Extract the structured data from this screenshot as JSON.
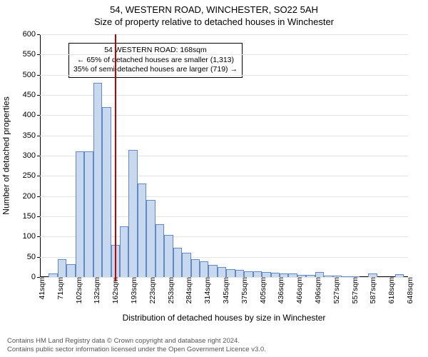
{
  "title_line1": "54, WESTERN ROAD, WINCHESTER, SO22 5AH",
  "title_line2": "Size of property relative to detached houses in Winchester",
  "y_axis_label": "Number of detached properties",
  "x_axis_label": "Distribution of detached houses by size in Winchester",
  "footer_line1": "Contains HM Land Registry data © Crown copyright and database right 2024.",
  "footer_line2": "Contains public sector information licensed under the Open Government Licence v3.0.",
  "chart": {
    "type": "histogram",
    "ylim": [
      0,
      600
    ],
    "yticks": [
      0,
      50,
      100,
      150,
      200,
      250,
      300,
      350,
      400,
      450,
      500,
      550,
      600
    ],
    "xticks": [
      "41sqm",
      "71sqm",
      "102sqm",
      "132sqm",
      "162sqm",
      "193sqm",
      "223sqm",
      "253sqm",
      "284sqm",
      "314sqm",
      "345sqm",
      "375sqm",
      "405sqm",
      "436sqm",
      "466sqm",
      "496sqm",
      "527sqm",
      "557sqm",
      "587sqm",
      "618sqm",
      "648sqm"
    ],
    "bar_area_min": 41,
    "bar_area_max": 663,
    "bar_step": 15,
    "marker_area": 168,
    "values": [
      0,
      8,
      45,
      32,
      310,
      310,
      480,
      420,
      80,
      125,
      315,
      232,
      190,
      130,
      105,
      72,
      60,
      45,
      38,
      30,
      25,
      20,
      18,
      15,
      14,
      12,
      10,
      8,
      8,
      6,
      5,
      12,
      4,
      3,
      2,
      2,
      0,
      8,
      0,
      0,
      7,
      0
    ],
    "bar_fill": "#c7d8ef",
    "bar_stroke": "#6289c3",
    "grid_color": "#e4e4e4",
    "axis_color": "#000000",
    "marker_color": "#c00000",
    "background_color": "#ffffff",
    "title_fontsize": 13,
    "label_fontsize": 12,
    "tick_fontsize": 11
  },
  "callout": {
    "line1": "54 WESTERN ROAD: 168sqm",
    "line2": "← 65% of detached houses are smaller (1,313)",
    "line3": "35% of semi-detached houses are larger (719) →"
  }
}
